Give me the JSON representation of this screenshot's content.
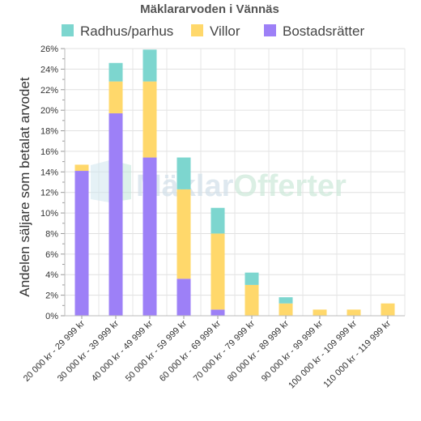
{
  "chart_data": {
    "type": "bar",
    "stacked": true,
    "title": "Mäklararvoden i Vännäs",
    "ylabel": "Andelen säljare som betalat arvodet",
    "xlabel": "",
    "ylim": [
      0,
      26
    ],
    "y_ticks": [
      "0%",
      "2%",
      "4%",
      "6%",
      "8%",
      "10%",
      "12%",
      "14%",
      "16%",
      "18%",
      "20%",
      "22%",
      "24%",
      "26%"
    ],
    "grid": true,
    "legend_position": "top",
    "categories": [
      "20 000 kr - 29 999 kr",
      "30 000 kr - 39 999 kr",
      "40 000 kr - 49 999 kr",
      "50 000 kr - 59 999 kr",
      "60 000 kr - 69 999 kr",
      "70 000 kr - 79 999 kr",
      "80 000 kr - 89 999 kr",
      "90 000 kr - 99 999 kr",
      "100 000 kr - 109 999 kr",
      "110 000 kr - 119 999 kr"
    ],
    "series": [
      {
        "name": "Bostadsrätter",
        "color": "#9d80f7",
        "values": [
          14.1,
          19.7,
          15.4,
          3.6,
          0.6,
          0,
          0,
          0,
          0,
          0
        ]
      },
      {
        "name": "Villor",
        "color": "#ffd86b",
        "values": [
          0.6,
          3.1,
          7.4,
          8.7,
          7.4,
          3.0,
          1.2,
          0.6,
          0.6,
          1.2
        ]
      },
      {
        "name": "Radhus/parhus",
        "color": "#7dd6cf",
        "values": [
          0,
          1.8,
          3.1,
          3.1,
          2.5,
          1.2,
          0.6,
          0,
          0,
          0
        ]
      }
    ],
    "legend_order": [
      "Radhus/parhus",
      "Villor",
      "Bostadsrätter"
    ]
  },
  "watermark": {
    "part1": "Mäklar",
    "part2": "Offerter"
  }
}
